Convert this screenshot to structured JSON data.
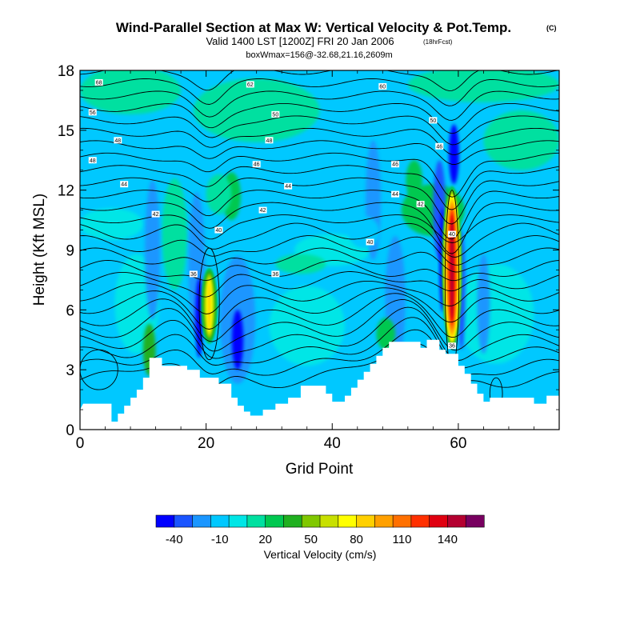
{
  "chart_data": {
    "type": "contour",
    "title": "Wind-Parallel Section at Max W: Vertical Velocity & Pot.Temp.",
    "title_mark": "(C)",
    "subtitle": "Valid 1400 LST [1200Z] FRI 20 Jan 2006",
    "subtitle_note": "(18hrFcst)",
    "subtitle2": "boxWmax=156@-32.68,21.16,2609m",
    "xlabel": "Grid Point",
    "ylabel": "Height (Kft MSL)",
    "xlim": [
      0,
      76
    ],
    "ylim": [
      0,
      18
    ],
    "x_ticks": [
      0,
      20,
      40,
      60
    ],
    "y_ticks": [
      0,
      3,
      6,
      9,
      12,
      15,
      18
    ],
    "colorbar": {
      "title": "Vertical Velocity (cm/s)",
      "tick_labels": [
        "-40",
        "-10",
        "20",
        "50",
        "80",
        "110",
        "140"
      ],
      "colors": [
        "#0000ff",
        "#1a55ff",
        "#1a96ff",
        "#00c8ff",
        "#00e6e6",
        "#00e0a0",
        "#00c850",
        "#20b020",
        "#80c800",
        "#c8e000",
        "#ffff00",
        "#ffd000",
        "#ffa000",
        "#ff7000",
        "#ff3000",
        "#e00010",
        "#b40030",
        "#780060"
      ]
    },
    "terrain_kft": [
      [
        0,
        1.0
      ],
      [
        0.5,
        1.3
      ],
      [
        5,
        1.3
      ],
      [
        5,
        0.4
      ],
      [
        6,
        0.4
      ],
      [
        6,
        0.8
      ],
      [
        7,
        0.8
      ],
      [
        7,
        1.2
      ],
      [
        8,
        1.2
      ],
      [
        8,
        1.6
      ],
      [
        9,
        1.6
      ],
      [
        9,
        2.0
      ],
      [
        10,
        2.0
      ],
      [
        10,
        2.6
      ],
      [
        11,
        2.6
      ],
      [
        11,
        3.6
      ],
      [
        13,
        3.6
      ],
      [
        13,
        3.2
      ],
      [
        17,
        3.2
      ],
      [
        17,
        3.0
      ],
      [
        19,
        3.0
      ],
      [
        19,
        2.6
      ],
      [
        22,
        2.6
      ],
      [
        22,
        2.3
      ],
      [
        24,
        2.3
      ],
      [
        24,
        1.6
      ],
      [
        25,
        1.6
      ],
      [
        25,
        1.2
      ],
      [
        26,
        1.2
      ],
      [
        26,
        0.9
      ],
      [
        27,
        0.9
      ],
      [
        27,
        0.7
      ],
      [
        29,
        0.7
      ],
      [
        29,
        1.0
      ],
      [
        31,
        1.0
      ],
      [
        31,
        1.3
      ],
      [
        33,
        1.3
      ],
      [
        33,
        1.6
      ],
      [
        35,
        1.6
      ],
      [
        35,
        2.2
      ],
      [
        39,
        2.2
      ],
      [
        39,
        1.8
      ],
      [
        40,
        1.8
      ],
      [
        40,
        1.4
      ],
      [
        42,
        1.4
      ],
      [
        42,
        1.7
      ],
      [
        43,
        1.7
      ],
      [
        43,
        2.1
      ],
      [
        44,
        2.1
      ],
      [
        44,
        2.5
      ],
      [
        45,
        2.5
      ],
      [
        45,
        2.9
      ],
      [
        46,
        2.9
      ],
      [
        46,
        3.3
      ],
      [
        47,
        3.3
      ],
      [
        47,
        3.7
      ],
      [
        48,
        3.7
      ],
      [
        48,
        4.1
      ],
      [
        49,
        4.1
      ],
      [
        49,
        4.4
      ],
      [
        54,
        4.4
      ],
      [
        54,
        4.1
      ],
      [
        55,
        4.1
      ],
      [
        55,
        4.5
      ],
      [
        57,
        4.5
      ],
      [
        57,
        4.0
      ],
      [
        58,
        4.0
      ],
      [
        58,
        3.8
      ],
      [
        60,
        3.8
      ],
      [
        60,
        3.2
      ],
      [
        61,
        3.2
      ],
      [
        61,
        2.8
      ],
      [
        62,
        2.8
      ],
      [
        62,
        2.3
      ],
      [
        63,
        2.3
      ],
      [
        63,
        1.8
      ],
      [
        64,
        1.8
      ],
      [
        64,
        1.4
      ],
      [
        65,
        1.4
      ],
      [
        65,
        1.6
      ],
      [
        72,
        1.6
      ],
      [
        72,
        1.3
      ],
      [
        74,
        1.3
      ],
      [
        74,
        1.7
      ],
      [
        76,
        1.7
      ]
    ],
    "features": [
      {
        "name": "primary-updraft",
        "x_center": 59,
        "z_bottom_kft": 4,
        "z_top_kft": 12.2,
        "max_w_cms": 156
      },
      {
        "name": "secondary-updraft",
        "x_center": 20.5,
        "z_bottom_kft": 4.3,
        "z_top_kft": 8.1,
        "max_w_cms": 90
      },
      {
        "name": "downdraft",
        "x_center": 25,
        "z_center_kft": 4.5,
        "min_w_cms": -40
      }
    ],
    "contour_labels": [
      {
        "text": "68",
        "x": 3,
        "y": 17.4
      },
      {
        "text": "62",
        "x": 27,
        "y": 17.3
      },
      {
        "text": "60",
        "x": 48,
        "y": 17.2
      },
      {
        "text": "56",
        "x": 2,
        "y": 15.9
      },
      {
        "text": "50",
        "x": 31,
        "y": 15.8
      },
      {
        "text": "50",
        "x": 56,
        "y": 15.5
      },
      {
        "text": "48",
        "x": 6,
        "y": 14.5
      },
      {
        "text": "48",
        "x": 30,
        "y": 14.5
      },
      {
        "text": "46",
        "x": 57,
        "y": 14.2
      },
      {
        "text": "48",
        "x": 2,
        "y": 13.5
      },
      {
        "text": "46",
        "x": 28,
        "y": 13.3
      },
      {
        "text": "46",
        "x": 50,
        "y": 13.3
      },
      {
        "text": "44",
        "x": 7,
        "y": 12.3
      },
      {
        "text": "44",
        "x": 33,
        "y": 12.2
      },
      {
        "text": "44",
        "x": 50,
        "y": 11.8
      },
      {
        "text": "42",
        "x": 12,
        "y": 10.8
      },
      {
        "text": "42",
        "x": 29,
        "y": 11.0
      },
      {
        "text": "42",
        "x": 54,
        "y": 11.3
      },
      {
        "text": "40",
        "x": 22,
        "y": 10.0
      },
      {
        "text": "40",
        "x": 46,
        "y": 9.4
      },
      {
        "text": "40",
        "x": 59,
        "y": 9.8
      },
      {
        "text": "36",
        "x": 18,
        "y": 7.8
      },
      {
        "text": "36",
        "x": 31,
        "y": 7.8
      },
      {
        "text": "36",
        "x": 59,
        "y": 4.2
      }
    ]
  }
}
